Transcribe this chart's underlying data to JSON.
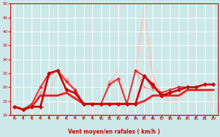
{
  "xlabel": "Vent moyen/en rafales ( km/h )",
  "ylabel": "",
  "xlim": [
    -0.5,
    23.5
  ],
  "ylim": [
    10,
    50
  ],
  "yticks": [
    10,
    15,
    20,
    25,
    30,
    35,
    40,
    45,
    50
  ],
  "xticks": [
    0,
    1,
    2,
    3,
    4,
    5,
    6,
    7,
    8,
    9,
    10,
    11,
    12,
    13,
    14,
    15,
    16,
    17,
    18,
    19,
    20,
    21,
    22,
    23
  ],
  "bg_color": "#cce8e8",
  "grid_color": "#ffffff",
  "series": [
    {
      "x": [
        0,
        1,
        2,
        3,
        4,
        5,
        6,
        7,
        8,
        9,
        10,
        11,
        12,
        13,
        14,
        15,
        16,
        17,
        18,
        19,
        20,
        21,
        22,
        23
      ],
      "y": [
        13,
        12,
        13,
        18,
        24,
        26,
        23,
        20,
        14,
        14,
        14,
        22,
        26,
        14,
        26,
        48,
        24,
        17,
        19,
        20,
        20,
        20,
        21,
        13
      ],
      "color": "#ffbbbb",
      "lw": 0.7,
      "marker": "D",
      "ms": 1.8,
      "zorder": 1
    },
    {
      "x": [
        0,
        1,
        2,
        3,
        4,
        5,
        6,
        7,
        8,
        9,
        10,
        11,
        12,
        13,
        14,
        15,
        16,
        17,
        18,
        19,
        20,
        21,
        22,
        23
      ],
      "y": [
        13,
        12,
        13,
        18,
        24,
        26,
        23,
        19,
        14,
        14,
        14,
        22,
        23,
        14,
        26,
        20,
        19,
        18,
        19,
        20,
        20,
        20,
        21,
        21
      ],
      "color": "#ff9999",
      "lw": 0.9,
      "marker": "D",
      "ms": 2.0,
      "zorder": 2
    },
    {
      "x": [
        0,
        1,
        2,
        3,
        4,
        5,
        6,
        7,
        8,
        9,
        10,
        11,
        12,
        13,
        14,
        15,
        16,
        17,
        18,
        19,
        20,
        21,
        22,
        23
      ],
      "y": [
        13,
        12,
        13,
        17,
        18,
        25,
        22,
        19,
        14,
        14,
        14,
        21,
        22,
        14,
        26,
        49,
        24,
        18,
        15,
        16,
        19,
        19,
        21,
        21
      ],
      "color": "#ffbbbb",
      "lw": 0.8,
      "marker": "D",
      "ms": 1.8,
      "zorder": 1
    },
    {
      "x": [
        0,
        1,
        2,
        3,
        4,
        5,
        6,
        7,
        8,
        9,
        10,
        11,
        12,
        13,
        14,
        15,
        16,
        17,
        18,
        19,
        20,
        21,
        22,
        23
      ],
      "y": [
        13,
        12,
        13,
        17,
        17,
        19,
        20,
        18,
        14,
        14,
        14,
        21,
        22,
        14,
        14,
        49,
        20,
        17,
        15,
        15,
        20,
        19,
        21,
        13
      ],
      "color": "#ffcccc",
      "lw": 0.7,
      "marker": null,
      "ms": 0,
      "zorder": 1
    },
    {
      "x": [
        0,
        1,
        2,
        3,
        4,
        5,
        6,
        7,
        8,
        9,
        10,
        11,
        12,
        13,
        14,
        15,
        16,
        17,
        18,
        19,
        20,
        21,
        22,
        23
      ],
      "y": [
        13,
        12,
        13,
        17,
        17,
        17,
        18,
        16,
        14,
        14,
        14,
        14,
        14,
        14,
        14,
        15,
        17,
        17,
        17,
        17,
        19,
        19,
        19,
        19
      ],
      "color": "#ee2222",
      "lw": 2.2,
      "marker": null,
      "ms": 0,
      "zorder": 3
    },
    {
      "x": [
        0,
        1,
        2,
        3,
        4,
        5,
        6,
        7,
        8,
        9,
        10,
        11,
        12,
        13,
        14,
        15,
        16,
        17,
        18,
        19,
        20,
        21,
        22,
        23
      ],
      "y": [
        13,
        12,
        14,
        20,
        25,
        26,
        22,
        19,
        14,
        14,
        14,
        21,
        23,
        14,
        26,
        24,
        20,
        18,
        19,
        20,
        20,
        20,
        21,
        21
      ],
      "color": "#dd3333",
      "lw": 1.5,
      "marker": "D",
      "ms": 2.5,
      "zorder": 4
    },
    {
      "x": [
        0,
        1,
        2,
        3,
        4,
        5,
        6,
        7,
        8,
        9,
        10,
        11,
        12,
        13,
        14,
        15,
        16,
        17,
        18,
        19,
        20,
        21,
        22,
        23
      ],
      "y": [
        13,
        12,
        13,
        13,
        25,
        26,
        19,
        18,
        14,
        14,
        14,
        14,
        14,
        14,
        14,
        24,
        21,
        17,
        18,
        19,
        20,
        20,
        21,
        21
      ],
      "color": "#cc0000",
      "lw": 2.0,
      "marker": "D",
      "ms": 3.0,
      "zorder": 5
    }
  ],
  "arrow_color": "#cc0000",
  "xlabel_color": "#cc0000",
  "tick_color": "#cc0000",
  "spine_color": "#cc0000"
}
